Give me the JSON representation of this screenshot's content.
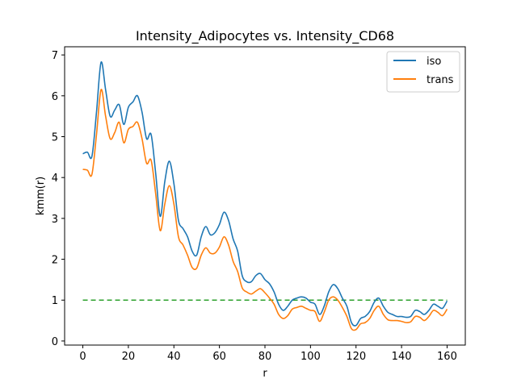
{
  "chart_data": {
    "type": "line",
    "title": "Intensity_Adipocytes vs. Intensity_CD68",
    "xlabel": "r",
    "ylabel": "kmm(r)",
    "xlim": [
      -8,
      168
    ],
    "ylim": [
      -0.1,
      7.2
    ],
    "xticks": [
      0,
      20,
      40,
      60,
      80,
      100,
      120,
      140,
      160
    ],
    "yticks": [
      0,
      1,
      2,
      3,
      4,
      5,
      6,
      7
    ],
    "grid": false,
    "legend_position": "top-right",
    "colors": {
      "iso": "#1f77b4",
      "trans": "#ff7f0e",
      "reference": "#2ca02c"
    },
    "x": [
      0,
      2,
      4,
      6,
      8,
      10,
      12,
      14,
      16,
      18,
      20,
      22,
      24,
      26,
      28,
      30,
      32,
      34,
      36,
      38,
      40,
      42,
      44,
      46,
      48,
      50,
      52,
      54,
      56,
      58,
      60,
      62,
      64,
      66,
      68,
      70,
      72,
      74,
      76,
      78,
      80,
      82,
      84,
      86,
      88,
      90,
      92,
      94,
      96,
      98,
      100,
      102,
      104,
      106,
      108,
      110,
      112,
      114,
      116,
      118,
      120,
      122,
      124,
      126,
      128,
      130,
      132,
      134,
      136,
      138,
      140,
      142,
      144,
      146,
      148,
      150,
      152,
      154,
      156,
      158,
      160
    ],
    "series": [
      {
        "name": "iso",
        "values": [
          4.58,
          4.62,
          4.52,
          5.6,
          6.82,
          6.15,
          5.5,
          5.65,
          5.78,
          5.3,
          5.72,
          5.85,
          6.0,
          5.6,
          4.95,
          5.05,
          4.1,
          3.05,
          3.9,
          4.4,
          3.85,
          2.95,
          2.75,
          2.55,
          2.2,
          2.1,
          2.55,
          2.8,
          2.6,
          2.65,
          2.85,
          3.15,
          2.95,
          2.5,
          2.2,
          1.6,
          1.45,
          1.45,
          1.6,
          1.65,
          1.5,
          1.4,
          1.2,
          0.9,
          0.75,
          0.85,
          1.0,
          1.05,
          1.08,
          1.05,
          0.95,
          0.9,
          0.65,
          0.85,
          1.2,
          1.38,
          1.28,
          1.05,
          0.85,
          0.45,
          0.38,
          0.55,
          0.6,
          0.72,
          0.95,
          1.05,
          0.85,
          0.7,
          0.65,
          0.6,
          0.6,
          0.58,
          0.6,
          0.75,
          0.72,
          0.65,
          0.75,
          0.9,
          0.85,
          0.8,
          0.98
        ]
      },
      {
        "name": "trans",
        "values": [
          4.2,
          4.18,
          4.08,
          5.05,
          6.15,
          5.5,
          4.95,
          5.1,
          5.35,
          4.85,
          5.18,
          5.25,
          5.35,
          4.95,
          4.35,
          4.42,
          3.6,
          2.7,
          3.35,
          3.8,
          3.35,
          2.55,
          2.35,
          2.1,
          1.8,
          1.78,
          2.1,
          2.28,
          2.15,
          2.15,
          2.3,
          2.55,
          2.35,
          1.95,
          1.7,
          1.3,
          1.2,
          1.15,
          1.22,
          1.28,
          1.18,
          1.05,
          0.9,
          0.65,
          0.55,
          0.62,
          0.78,
          0.82,
          0.85,
          0.8,
          0.75,
          0.72,
          0.48,
          0.7,
          1.0,
          1.08,
          1.0,
          0.82,
          0.6,
          0.3,
          0.28,
          0.42,
          0.45,
          0.55,
          0.75,
          0.85,
          0.65,
          0.52,
          0.5,
          0.5,
          0.48,
          0.45,
          0.47,
          0.6,
          0.58,
          0.5,
          0.6,
          0.75,
          0.7,
          0.62,
          0.78
        ]
      }
    ],
    "reference_line": {
      "y": 1.0,
      "x": [
        0,
        160
      ]
    }
  }
}
